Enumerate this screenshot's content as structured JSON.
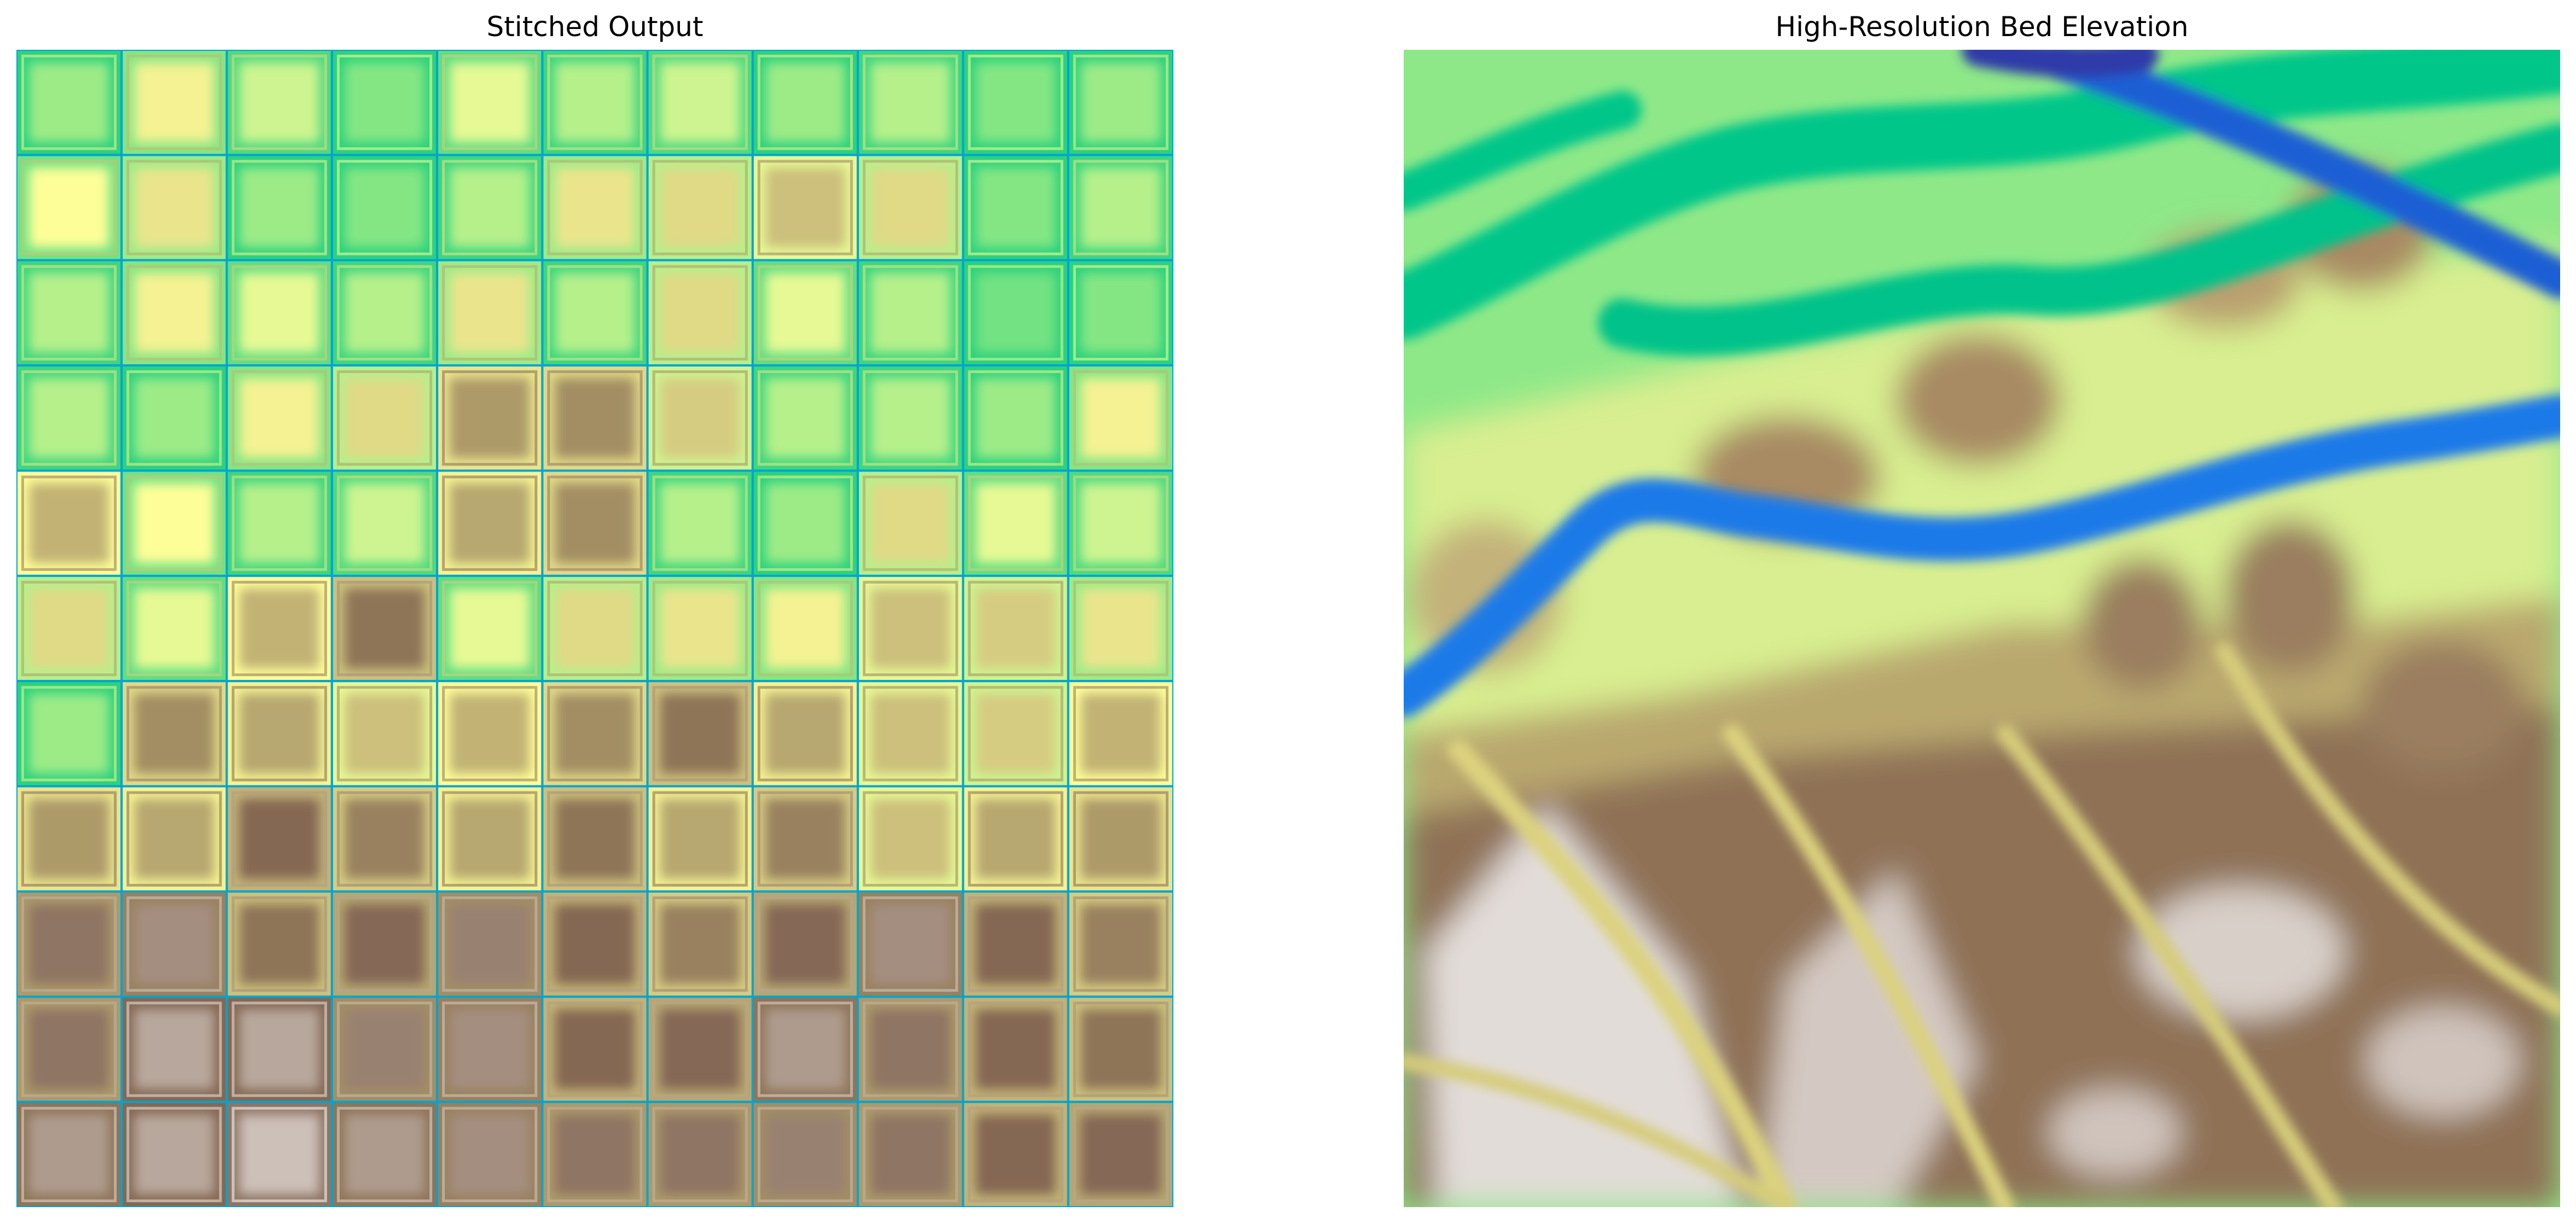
{
  "figure": {
    "left_panel": {
      "title": "Stitched Output",
      "grid_rows": 11,
      "grid_cols": 11,
      "tile_levels": [
        [
          0.42,
          0.52,
          0.46,
          0.4,
          0.48,
          0.44,
          0.46,
          0.42,
          0.44,
          0.4,
          0.42
        ],
        [
          0.5,
          0.54,
          0.42,
          0.4,
          0.44,
          0.54,
          0.56,
          0.6,
          0.56,
          0.4,
          0.44
        ],
        [
          0.44,
          0.52,
          0.48,
          0.44,
          0.54,
          0.44,
          0.56,
          0.48,
          0.44,
          0.38,
          0.4
        ],
        [
          0.44,
          0.42,
          0.52,
          0.56,
          0.66,
          0.68,
          0.58,
          0.44,
          0.44,
          0.42,
          0.52
        ],
        [
          0.62,
          0.5,
          0.44,
          0.46,
          0.64,
          0.68,
          0.44,
          0.42,
          0.56,
          0.48,
          0.46
        ],
        [
          0.56,
          0.48,
          0.62,
          0.72,
          0.48,
          0.56,
          0.54,
          0.52,
          0.6,
          0.58,
          0.54
        ],
        [
          0.42,
          0.68,
          0.64,
          0.6,
          0.62,
          0.68,
          0.72,
          0.64,
          0.6,
          0.58,
          0.62
        ],
        [
          0.66,
          0.64,
          0.74,
          0.7,
          0.64,
          0.72,
          0.64,
          0.7,
          0.6,
          0.64,
          0.66
        ],
        [
          0.78,
          0.82,
          0.72,
          0.76,
          0.8,
          0.74,
          0.7,
          0.76,
          0.82,
          0.74,
          0.7
        ],
        [
          0.78,
          0.86,
          0.86,
          0.8,
          0.82,
          0.74,
          0.76,
          0.84,
          0.78,
          0.74,
          0.72
        ],
        [
          0.84,
          0.86,
          0.9,
          0.84,
          0.82,
          0.78,
          0.78,
          0.8,
          0.78,
          0.74,
          0.76
        ]
      ]
    },
    "right_panel": {
      "title": "High-Resolution Bed Elevation"
    },
    "colormap": {
      "name": "terrain",
      "stops": [
        "#333399",
        "#0294fa",
        "#00c87a",
        "#84e683",
        "#fefe98",
        "#80624f",
        "#ffffff"
      ]
    }
  }
}
